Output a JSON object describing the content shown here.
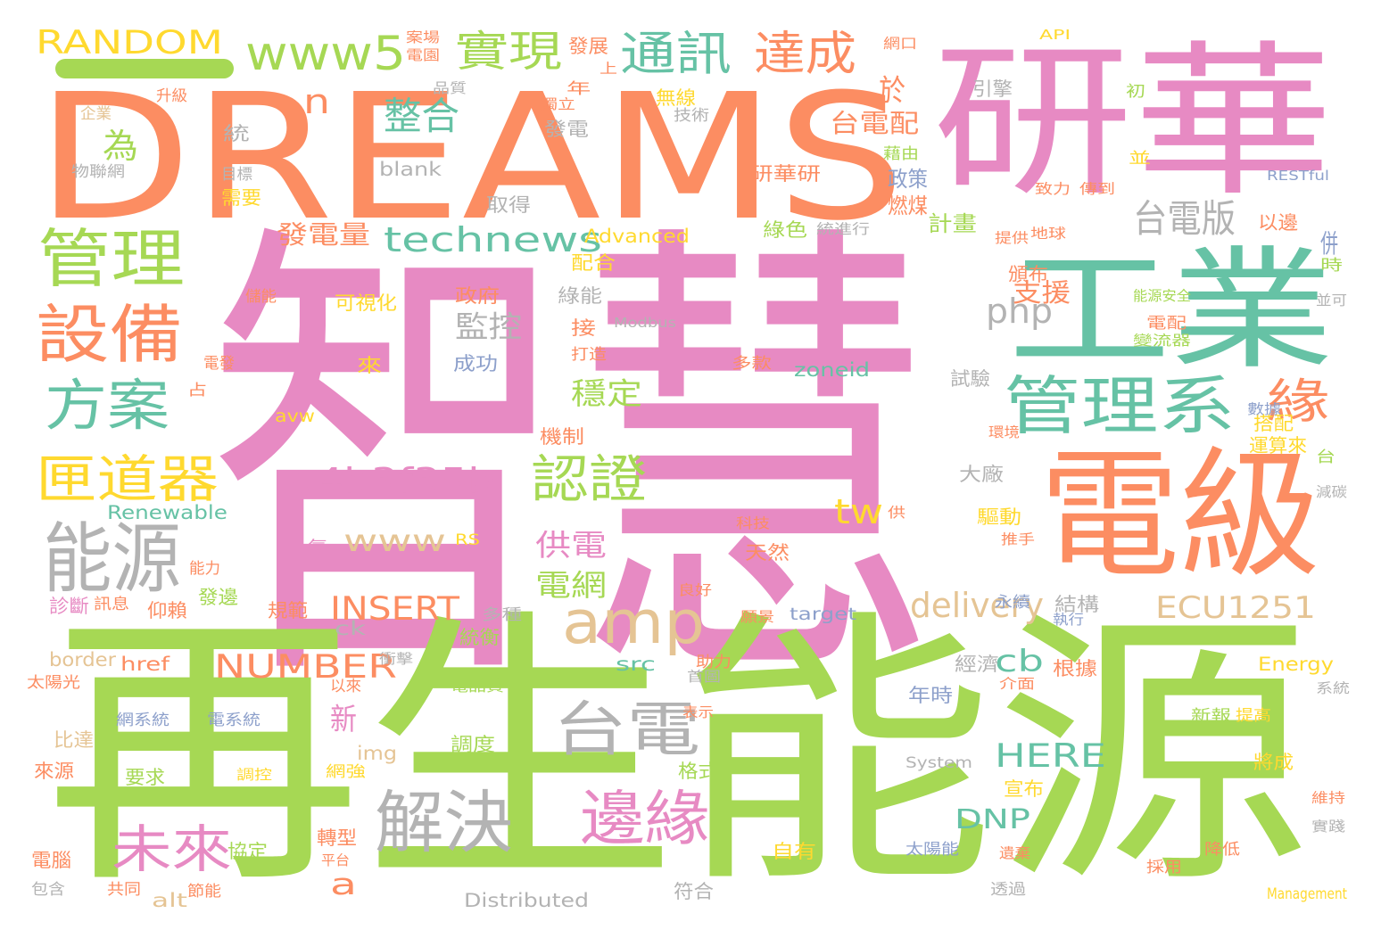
{
  "colors": {
    "pink": "#e78ac3",
    "green": "#a6d854",
    "orange": "#fc8d62",
    "teal": "#66c2a5",
    "gray": "#b3b3b3",
    "tan": "#e5c494",
    "yellow": "#ffd92f",
    "blue": "#8da0cb"
  },
  "words": [
    {
      "text": "智慧",
      "color": "pink"
    },
    {
      "text": "再生能源",
      "color": "green"
    },
    {
      "text": "DREAMS",
      "color": "orange"
    },
    {
      "text": "研華",
      "color": "pink"
    },
    {
      "text": "工業",
      "color": "teal"
    },
    {
      "text": "電級",
      "color": "orange"
    },
    {
      "text": "管理系",
      "color": "teal"
    },
    {
      "text": "管理",
      "color": "green"
    },
    {
      "text": "設備",
      "color": "orange"
    },
    {
      "text": "方案",
      "color": "teal"
    },
    {
      "text": "匣道器",
      "color": "yellow"
    },
    {
      "text": "能源",
      "color": "gray"
    },
    {
      "text": "amp",
      "color": "tan"
    },
    {
      "text": "台電",
      "color": "gray"
    },
    {
      "text": "解決",
      "color": "gray"
    },
    {
      "text": "未來",
      "color": "pink"
    },
    {
      "text": "邊緣",
      "color": "pink"
    },
    {
      "text": "www5",
      "color": "green"
    },
    {
      "text": "實現",
      "color": "green"
    },
    {
      "text": "通訊",
      "color": "teal"
    },
    {
      "text": "達成",
      "color": "orange"
    },
    {
      "text": "RANDOM",
      "color": "yellow"
    },
    {
      "text": "整合",
      "color": "teal"
    },
    {
      "text": "technews",
      "color": "teal"
    },
    {
      "text": "a4b3f35b",
      "color": "pink"
    },
    {
      "text": "認證",
      "color": "green"
    },
    {
      "text": "台電版",
      "color": "gray"
    },
    {
      "text": "緣",
      "color": "orange"
    },
    {
      "text": "為",
      "color": "green"
    },
    {
      "text": "n",
      "color": "orange"
    },
    {
      "text": "於",
      "color": "orange"
    },
    {
      "text": "台電配",
      "color": "orange"
    },
    {
      "text": "發電量",
      "color": "orange"
    },
    {
      "text": "php",
      "color": "gray"
    },
    {
      "text": "監控",
      "color": "gray"
    },
    {
      "text": "穩定",
      "color": "green"
    },
    {
      "text": "支援",
      "color": "orange"
    },
    {
      "text": "INSERT",
      "color": "orange"
    },
    {
      "text": "delivery",
      "color": "tan"
    },
    {
      "text": "ECU1251",
      "color": "tan"
    },
    {
      "text": "NUMBER",
      "color": "orange"
    },
    {
      "text": "www",
      "color": "tan"
    },
    {
      "text": "tw",
      "color": "yellow"
    },
    {
      "text": "供電",
      "color": "pink"
    },
    {
      "text": "電網",
      "color": "green"
    },
    {
      "text": "cb",
      "color": "teal"
    },
    {
      "text": "新",
      "color": "pink"
    },
    {
      "text": "HERE",
      "color": "teal"
    },
    {
      "text": "DNP",
      "color": "teal"
    },
    {
      "text": "a",
      "color": "orange"
    },
    {
      "text": "併",
      "color": "blue"
    },
    {
      "text": "blank",
      "color": "gray"
    },
    {
      "text": "研華研",
      "color": "orange"
    },
    {
      "text": "政策",
      "color": "blue"
    },
    {
      "text": "燃煤",
      "color": "orange"
    },
    {
      "text": "計畫",
      "color": "green"
    },
    {
      "text": "取得",
      "color": "gray"
    },
    {
      "text": "引擎",
      "color": "gray"
    },
    {
      "text": "Advanced",
      "color": "yellow"
    },
    {
      "text": "Renewable",
      "color": "teal"
    },
    {
      "text": "zoneid",
      "color": "teal"
    },
    {
      "text": "target",
      "color": "blue"
    },
    {
      "text": "Energy",
      "color": "yellow"
    },
    {
      "text": "Distributed",
      "color": "gray"
    },
    {
      "text": "Management",
      "color": "yellow"
    },
    {
      "text": "System",
      "color": "gray"
    },
    {
      "text": "Modbus",
      "color": "gray"
    },
    {
      "text": "RESTful",
      "color": "blue"
    },
    {
      "text": "API",
      "color": "yellow"
    },
    {
      "text": "href",
      "color": "orange"
    },
    {
      "text": "src",
      "color": "teal"
    },
    {
      "text": "img",
      "color": "tan"
    },
    {
      "text": "border",
      "color": "tan"
    },
    {
      "text": "alt",
      "color": "tan"
    },
    {
      "text": "ck",
      "color": "gray"
    },
    {
      "text": "avw",
      "color": "yellow"
    },
    {
      "text": "RS",
      "color": "yellow"
    },
    {
      "text": "轉型",
      "color": "orange"
    },
    {
      "text": "協定",
      "color": "green"
    },
    {
      "text": "格式",
      "color": "green"
    },
    {
      "text": "要求",
      "color": "green"
    },
    {
      "text": "調度",
      "color": "green"
    },
    {
      "text": "自有",
      "color": "yellow"
    },
    {
      "text": "宣布",
      "color": "yellow"
    },
    {
      "text": "將成",
      "color": "yellow"
    },
    {
      "text": "經濟",
      "color": "gray"
    },
    {
      "text": "年時",
      "color": "blue"
    },
    {
      "text": "根據",
      "color": "orange"
    },
    {
      "text": "結構",
      "color": "gray"
    },
    {
      "text": "驅動",
      "color": "yellow"
    },
    {
      "text": "大廠",
      "color": "gray"
    },
    {
      "text": "天然",
      "color": "orange"
    },
    {
      "text": "成功",
      "color": "blue"
    },
    {
      "text": "來",
      "color": "yellow"
    },
    {
      "text": "接",
      "color": "orange"
    },
    {
      "text": "可視化",
      "color": "yellow"
    },
    {
      "text": "政府",
      "color": "orange"
    },
    {
      "text": "綠能",
      "color": "gray"
    },
    {
      "text": "綠色",
      "color": "green"
    },
    {
      "text": "配合",
      "color": "yellow"
    },
    {
      "text": "頒布",
      "color": "orange"
    },
    {
      "text": "以邊",
      "color": "orange"
    },
    {
      "text": "機制",
      "color": "orange"
    },
    {
      "text": "搭配",
      "color": "yellow"
    },
    {
      "text": "運算來",
      "color": "yellow"
    },
    {
      "text": "發電",
      "color": "gray"
    },
    {
      "text": "無線",
      "color": "yellow"
    },
    {
      "text": "技術",
      "color": "gray"
    },
    {
      "text": "統",
      "color": "gray"
    },
    {
      "text": "企業",
      "color": "tan"
    },
    {
      "text": "升級",
      "color": "orange"
    },
    {
      "text": "物聯網",
      "color": "gray"
    },
    {
      "text": "目標",
      "color": "gray"
    },
    {
      "text": "需要",
      "color": "yellow"
    },
    {
      "text": "儲能",
      "color": "orange"
    },
    {
      "text": "電發",
      "color": "orange"
    },
    {
      "text": "占",
      "color": "orange"
    },
    {
      "text": "能力",
      "color": "orange"
    },
    {
      "text": "發邊",
      "color": "green"
    },
    {
      "text": "仰賴",
      "color": "orange"
    },
    {
      "text": "診斷",
      "color": "pink"
    },
    {
      "text": "訊息",
      "color": "orange"
    },
    {
      "text": "規範",
      "color": "orange"
    },
    {
      "text": "氣",
      "color": "pink"
    },
    {
      "text": "太陽光",
      "color": "orange"
    },
    {
      "text": "比達",
      "color": "tan"
    },
    {
      "text": "來源",
      "color": "orange"
    },
    {
      "text": "電腦",
      "color": "orange"
    },
    {
      "text": "包含",
      "color": "gray"
    },
    {
      "text": "共同",
      "color": "orange"
    },
    {
      "text": "節能",
      "color": "orange"
    },
    {
      "text": "符合",
      "color": "gray"
    },
    {
      "text": "透過",
      "color": "gray"
    },
    {
      "text": "平台",
      "color": "orange"
    },
    {
      "text": "網強",
      "color": "yellow"
    },
    {
      "text": "網系統",
      "color": "blue"
    },
    {
      "text": "電系統",
      "color": "blue"
    },
    {
      "text": "表示",
      "color": "orange"
    },
    {
      "text": "首圖",
      "color": "gray"
    },
    {
      "text": "以來",
      "color": "orange"
    },
    {
      "text": "電品質",
      "color": "green"
    },
    {
      "text": "統衡",
      "color": "green"
    },
    {
      "text": "多種",
      "color": "gray"
    },
    {
      "text": "衝擊",
      "color": "gray"
    },
    {
      "text": "助力",
      "color": "orange"
    },
    {
      "text": "願景",
      "color": "orange"
    },
    {
      "text": "執行",
      "color": "blue"
    },
    {
      "text": "永續",
      "color": "blue"
    },
    {
      "text": "推手",
      "color": "orange"
    },
    {
      "text": "良好",
      "color": "orange"
    },
    {
      "text": "科技",
      "color": "orange"
    },
    {
      "text": "多款",
      "color": "orange"
    },
    {
      "text": "試驗",
      "color": "gray"
    },
    {
      "text": "環境",
      "color": "orange"
    },
    {
      "text": "數據",
      "color": "blue"
    },
    {
      "text": "台",
      "color": "green"
    },
    {
      "text": "減碳",
      "color": "gray"
    },
    {
      "text": "供",
      "color": "orange"
    },
    {
      "text": "介面",
      "color": "orange"
    },
    {
      "text": "新報",
      "color": "green"
    },
    {
      "text": "提高",
      "color": "yellow"
    },
    {
      "text": "系統",
      "color": "gray"
    },
    {
      "text": "維持",
      "color": "orange"
    },
    {
      "text": "實踐",
      "color": "gray"
    },
    {
      "text": "降低",
      "color": "orange"
    },
    {
      "text": "採用",
      "color": "orange"
    },
    {
      "text": "太陽能",
      "color": "blue"
    },
    {
      "text": "遺棄",
      "color": "orange"
    },
    {
      "text": "調控",
      "color": "yellow"
    },
    {
      "text": "能源安全",
      "color": "green"
    },
    {
      "text": "電配",
      "color": "orange"
    },
    {
      "text": "變流器",
      "color": "green"
    },
    {
      "text": "打造",
      "color": "orange"
    },
    {
      "text": "網口",
      "color": "orange"
    },
    {
      "text": "案場",
      "color": "orange"
    },
    {
      "text": "電園",
      "color": "orange"
    },
    {
      "text": "發展",
      "color": "orange"
    },
    {
      "text": "上",
      "color": "orange"
    },
    {
      "text": "品質",
      "color": "gray"
    },
    {
      "text": "獨立",
      "color": "orange"
    },
    {
      "text": "年",
      "color": "orange"
    },
    {
      "text": "藉由",
      "color": "green"
    },
    {
      "text": "致力",
      "color": "orange"
    },
    {
      "text": "傳到",
      "color": "orange"
    },
    {
      "text": "提供",
      "color": "orange"
    },
    {
      "text": "地球",
      "color": "orange"
    },
    {
      "text": "並",
      "color": "yellow"
    },
    {
      "text": "時",
      "color": "green"
    },
    {
      "text": "並可",
      "color": "gray"
    },
    {
      "text": "統進行",
      "color": "gray"
    },
    {
      "text": "初",
      "color": "green"
    }
  ]
}
